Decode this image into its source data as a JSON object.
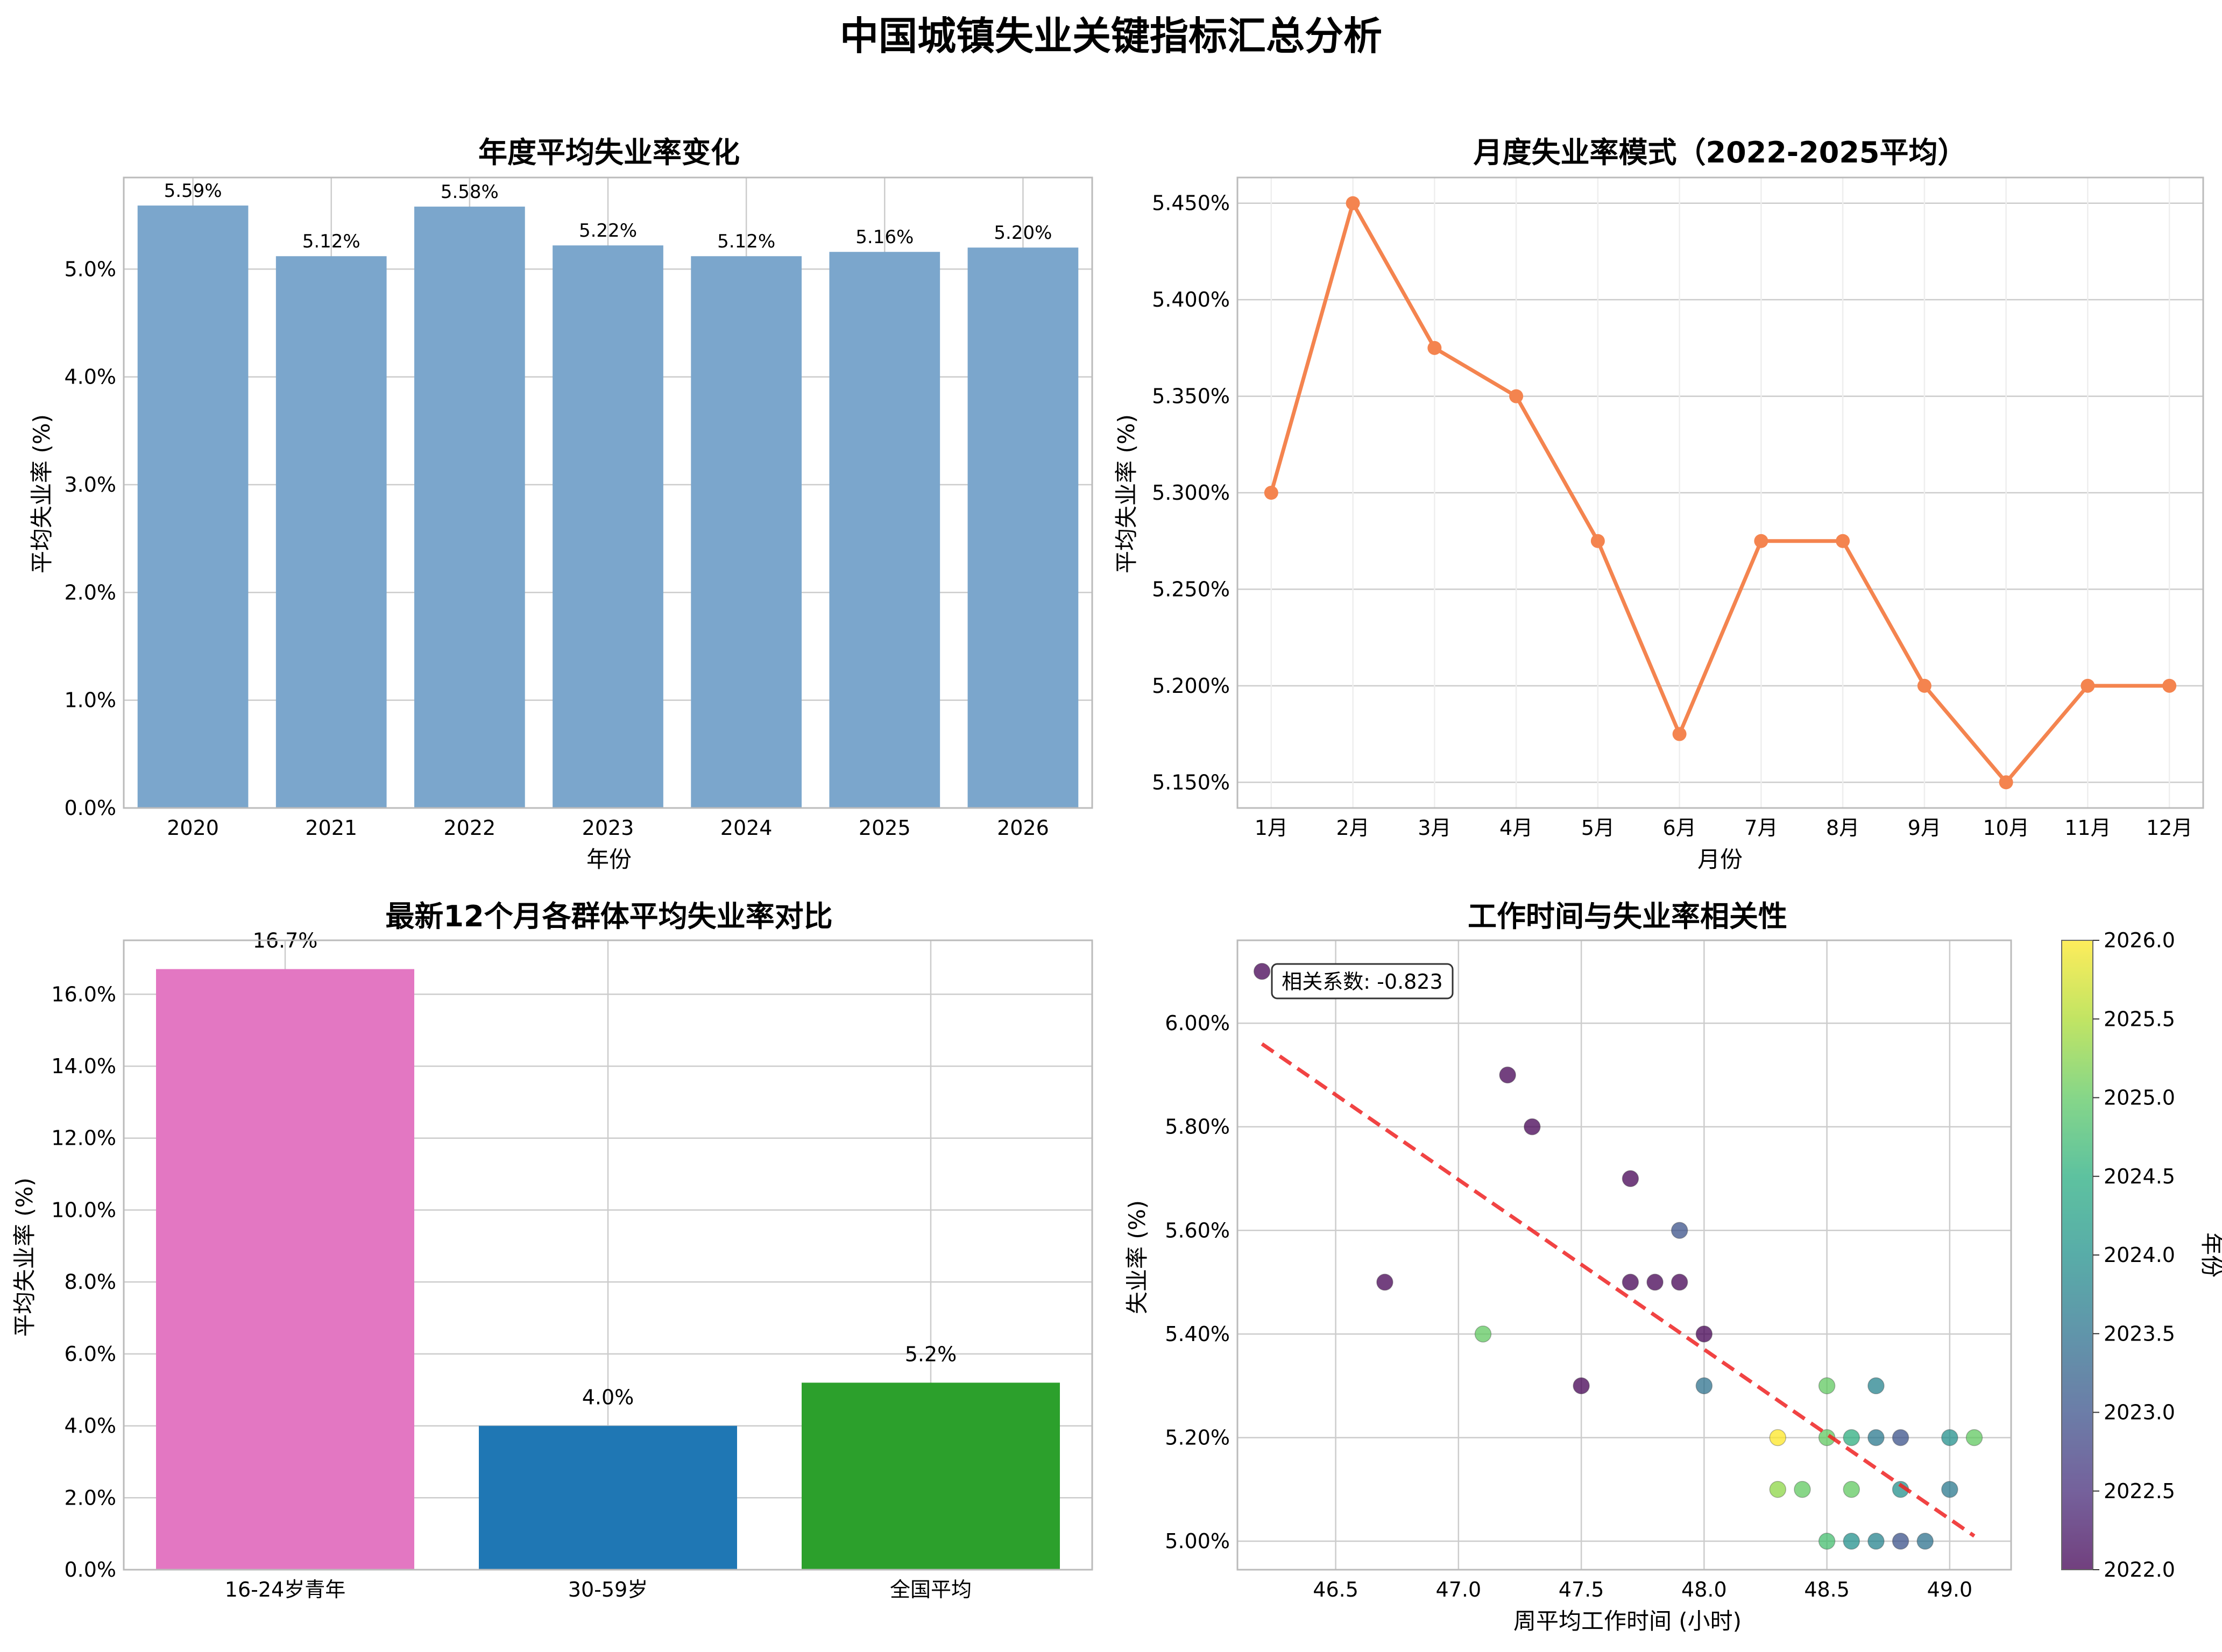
{
  "title": "中国城镇失业关键指标汇总分析",
  "chart_data": [
    {
      "type": "bar",
      "title": "年度平均失业率变化",
      "xlabel": "年份",
      "ylabel": "平均失业率 (%)",
      "categories": [
        "2020",
        "2021",
        "2022",
        "2023",
        "2024",
        "2025",
        "2026"
      ],
      "values": [
        5.59,
        5.12,
        5.58,
        5.22,
        5.12,
        5.16,
        5.2
      ],
      "data_labels": [
        "5.59%",
        "5.12%",
        "5.58%",
        "5.22%",
        "5.12%",
        "5.16%",
        "5.20%"
      ],
      "ylim": [
        0,
        5.85
      ],
      "yticks": [
        0,
        1,
        2,
        3,
        4,
        5
      ],
      "ytick_labels": [
        "0.0%",
        "1.0%",
        "2.0%",
        "3.0%",
        "4.0%",
        "5.0%"
      ],
      "color": "#7BA6CC",
      "grid": true
    },
    {
      "type": "line",
      "title": "月度失业率模式（2022-2025平均）",
      "xlabel": "月份",
      "ylabel": "平均失业率 (%)",
      "categories": [
        "1月",
        "2月",
        "3月",
        "4月",
        "5月",
        "6月",
        "7月",
        "8月",
        "9月",
        "10月",
        "11月",
        "12月"
      ],
      "values": [
        5.3,
        5.45,
        5.375,
        5.35,
        5.275,
        5.175,
        5.275,
        5.275,
        5.2,
        5.15,
        5.2,
        5.2
      ],
      "ylim": [
        5.1367,
        5.4633
      ],
      "yticks": [
        5.15,
        5.2,
        5.25,
        5.3,
        5.35,
        5.4,
        5.45
      ],
      "ytick_labels": [
        "5.150%",
        "5.200%",
        "5.250%",
        "5.300%",
        "5.350%",
        "5.400%",
        "5.450%"
      ],
      "color": "#F4844F",
      "grid": true
    },
    {
      "type": "bar",
      "title": "最新12个月各群体平均失业率对比",
      "xlabel": "",
      "ylabel": "平均失业率 (%)",
      "categories": [
        "16-24岁青年",
        "30-59岁",
        "全国平均"
      ],
      "values": [
        16.7,
        4.0,
        5.2
      ],
      "data_labels": [
        "16.7%",
        "4.0%",
        "5.2%"
      ],
      "colors": [
        "#E377C2",
        "#1F77B4",
        "#2CA02C"
      ],
      "ylim": [
        0,
        17.5
      ],
      "yticks": [
        0,
        2,
        4,
        6,
        8,
        10,
        12,
        14,
        16
      ],
      "ytick_labels": [
        "0.0%",
        "2.0%",
        "4.0%",
        "6.0%",
        "8.0%",
        "10.0%",
        "12.0%",
        "14.0%",
        "16.0%"
      ],
      "grid": true
    },
    {
      "type": "scatter",
      "title": "工作时间与失业率相关性",
      "xlabel": "周平均工作时间 (小时)",
      "ylabel": "失业率 (%)",
      "xlim": [
        46.1,
        49.25
      ],
      "ylim": [
        4.945,
        6.16
      ],
      "xticks": [
        46.5,
        47.0,
        47.5,
        48.0,
        48.5,
        49.0
      ],
      "xtick_labels": [
        "46.5",
        "47.0",
        "47.5",
        "48.0",
        "48.5",
        "49.0"
      ],
      "yticks": [
        5.0,
        5.2,
        5.4,
        5.6,
        5.8,
        6.0
      ],
      "ytick_labels": [
        "5.00%",
        "5.20%",
        "5.40%",
        "5.60%",
        "5.80%",
        "6.00%"
      ],
      "annotation": "相关系数: -0.823",
      "trendline": {
        "x": [
          46.2,
          49.1
        ],
        "y": [
          5.96,
          5.01
        ],
        "color": "#EE2222"
      },
      "colorbar": {
        "label": "年份",
        "range": [
          2022.0,
          2026.0
        ],
        "ticks": [
          2022.0,
          2022.5,
          2023.0,
          2023.5,
          2024.0,
          2024.5,
          2025.0,
          2025.5,
          2026.0
        ],
        "tick_labels": [
          "2022.0",
          "2022.5",
          "2023.0",
          "2023.5",
          "2024.0",
          "2024.5",
          "2025.0",
          "2025.5",
          "2026.0"
        ],
        "colormap": "viridis"
      },
      "points": [
        {
          "x": 46.2,
          "y": 6.1,
          "year": 2022.0
        },
        {
          "x": 47.2,
          "y": 5.9,
          "year": 2022.0
        },
        {
          "x": 47.3,
          "y": 5.8,
          "year": 2022.0
        },
        {
          "x": 47.7,
          "y": 5.7,
          "year": 2022.0
        },
        {
          "x": 46.7,
          "y": 5.5,
          "year": 2022.0
        },
        {
          "x": 47.7,
          "y": 5.5,
          "year": 2022.0
        },
        {
          "x": 47.8,
          "y": 5.5,
          "year": 2022.0
        },
        {
          "x": 47.9,
          "y": 5.5,
          "year": 2022.0
        },
        {
          "x": 48.0,
          "y": 5.4,
          "year": 2022.0
        },
        {
          "x": 47.5,
          "y": 5.3,
          "year": 2022.0
        },
        {
          "x": 47.9,
          "y": 5.6,
          "year": 2023.0
        },
        {
          "x": 48.0,
          "y": 5.3,
          "year": 2023.5
        },
        {
          "x": 48.7,
          "y": 5.3,
          "year": 2023.8
        },
        {
          "x": 48.8,
          "y": 5.2,
          "year": 2023.0
        },
        {
          "x": 48.7,
          "y": 5.2,
          "year": 2023.6
        },
        {
          "x": 49.0,
          "y": 5.1,
          "year": 2023.6
        },
        {
          "x": 48.8,
          "y": 5.1,
          "year": 2024.0
        },
        {
          "x": 48.8,
          "y": 5.0,
          "year": 2023.0
        },
        {
          "x": 48.9,
          "y": 5.0,
          "year": 2023.5
        },
        {
          "x": 48.7,
          "y": 5.0,
          "year": 2023.8
        },
        {
          "x": 48.6,
          "y": 5.0,
          "year": 2024.0
        },
        {
          "x": 49.0,
          "y": 5.2,
          "year": 2024.0
        },
        {
          "x": 48.6,
          "y": 5.2,
          "year": 2024.5
        },
        {
          "x": 48.5,
          "y": 5.0,
          "year": 2024.8
        },
        {
          "x": 48.5,
          "y": 5.2,
          "year": 2025.0
        },
        {
          "x": 48.6,
          "y": 5.1,
          "year": 2025.0
        },
        {
          "x": 47.1,
          "y": 5.4,
          "year": 2025.0
        },
        {
          "x": 48.5,
          "y": 5.3,
          "year": 2025.0
        },
        {
          "x": 49.1,
          "y": 5.2,
          "year": 2025.0
        },
        {
          "x": 48.4,
          "y": 5.1,
          "year": 2025.0
        },
        {
          "x": 48.3,
          "y": 5.1,
          "year": 2025.3
        },
        {
          "x": 48.3,
          "y": 5.2,
          "year": 2026.0
        }
      ],
      "grid": true
    }
  ]
}
